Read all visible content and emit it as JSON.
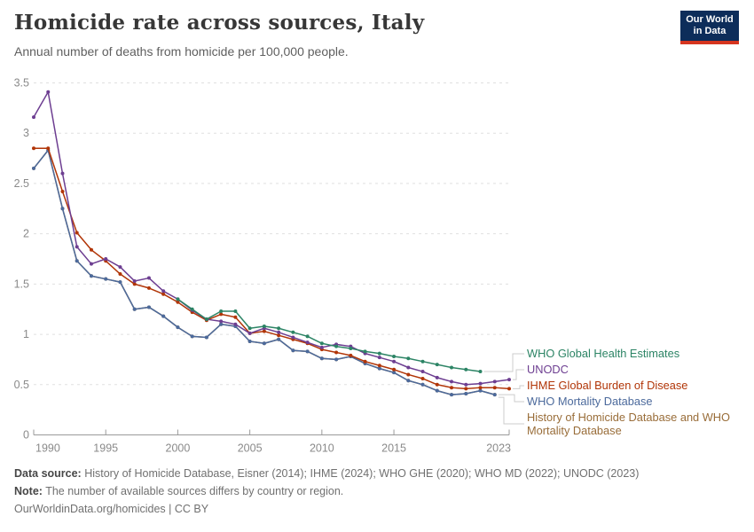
{
  "header": {
    "title": "Homicide rate across sources, Italy",
    "subtitle": "Annual number of deaths from homicide per 100,000 people.",
    "logo": {
      "line1": "Our World",
      "line2": "in Data"
    }
  },
  "chart_data": {
    "type": "line",
    "title": "Homicide rate across sources, Italy",
    "xlabel": "",
    "ylabel": "",
    "x_axis": {
      "range": [
        1990,
        2023
      ],
      "ticks": [
        1990,
        1995,
        2000,
        2005,
        2010,
        2015,
        2023
      ]
    },
    "y_axis": {
      "range": [
        0,
        3.5
      ],
      "ticks": [
        0,
        0.5,
        1,
        1.5,
        2,
        2.5,
        3,
        3.5
      ],
      "tick_labels": [
        "0",
        "0.5",
        "1",
        "1.5",
        "2",
        "2.5",
        "3",
        "3.5"
      ]
    },
    "grid": true,
    "legend": {
      "position": "right"
    },
    "series": [
      {
        "name": "WHO Global Health Estimates",
        "color": "#2C8465",
        "start_year": 2000,
        "values": [
          1.35,
          1.25,
          1.15,
          1.23,
          1.23,
          1.06,
          1.08,
          1.06,
          1.02,
          0.98,
          0.91,
          0.88,
          0.86,
          0.83,
          0.81,
          0.78,
          0.76,
          0.73,
          0.7,
          0.67,
          0.65,
          0.63
        ]
      },
      {
        "name": "UNODC",
        "color": "#6D3E91",
        "start_year": 1990,
        "values": [
          3.16,
          3.41,
          2.6,
          1.87,
          1.7,
          1.75,
          1.67,
          1.53,
          1.56,
          1.43,
          1.35,
          1.24,
          1.15,
          1.13,
          1.1,
          1.01,
          1.06,
          1.02,
          0.97,
          0.92,
          0.87,
          0.9,
          0.88,
          0.81,
          0.77,
          0.73,
          0.67,
          0.63,
          0.57,
          0.53,
          0.5,
          0.51,
          0.53,
          0.55
        ]
      },
      {
        "name": "IHME Global Burden of Disease",
        "color": "#B13507",
        "start_year": 1990,
        "values": [
          2.85,
          2.85,
          2.42,
          2.01,
          1.84,
          1.73,
          1.6,
          1.5,
          1.46,
          1.4,
          1.32,
          1.22,
          1.14,
          1.2,
          1.17,
          1.01,
          1.03,
          0.99,
          0.95,
          0.91,
          0.85,
          0.82,
          0.79,
          0.73,
          0.69,
          0.65,
          0.6,
          0.56,
          0.5,
          0.47,
          0.46,
          0.47,
          0.47,
          0.46
        ]
      },
      {
        "name": "WHO Mortality Database",
        "color": "#4C6A9C",
        "start_year": 1990,
        "values": [
          2.65,
          2.83,
          2.25,
          1.73,
          1.58,
          1.55,
          1.52,
          1.25,
          1.27,
          1.18,
          1.07,
          0.98,
          0.97,
          1.1,
          1.08,
          0.93,
          0.91,
          0.95,
          0.84,
          0.83,
          0.76,
          0.75,
          0.78,
          0.71,
          0.66,
          0.62,
          0.54,
          0.5,
          0.44,
          0.4,
          0.41,
          0.44,
          0.4
        ]
      },
      {
        "name": "History of Homicide Database and WHO Mortality Database",
        "label_lines": [
          "History of Homicide Database and WHO",
          "Mortality Database"
        ],
        "color": "#996D39",
        "start_year": 1990,
        "values": [
          2.65,
          2.83,
          2.25,
          1.73,
          1.58,
          1.55,
          1.52,
          1.25,
          1.27,
          1.18,
          1.07,
          0.98,
          0.97,
          1.1,
          1.08,
          0.93,
          0.91,
          0.95,
          0.84,
          0.83,
          0.76,
          0.75,
          0.78,
          0.71,
          0.66,
          0.62,
          0.54,
          0.5,
          0.44,
          0.4,
          0.41,
          0.44,
          0.4
        ]
      }
    ]
  },
  "footer": {
    "source_label": "Data source:",
    "source_text": " History of Homicide Database, Eisner (2014); IHME (2024); WHO GHE (2020); WHO MD (2022); UNODC (2023)",
    "note_label": "Note:",
    "note_text": " The number of available sources differs by country or region.",
    "citation": "OurWorldinData.org/homicides | CC BY"
  }
}
